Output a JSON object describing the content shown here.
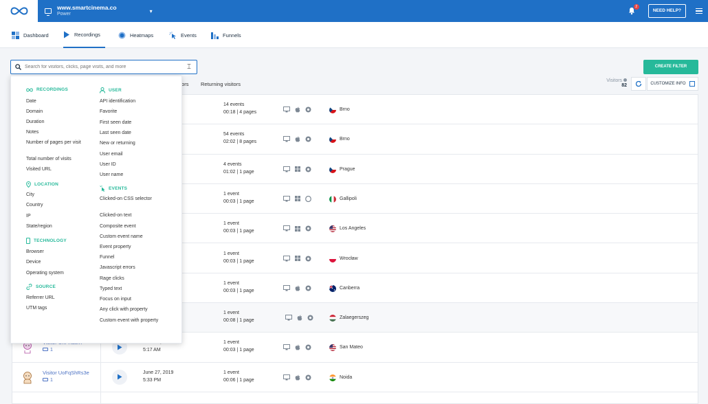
{
  "topbar": {
    "site_name": "www.smartcinema.co",
    "site_plan": "Power",
    "notification_count": "2",
    "help_label": "NEED HELP?"
  },
  "nav": {
    "items": [
      {
        "label": "Dashboard"
      },
      {
        "label": "Recordings"
      },
      {
        "label": "Heatmaps"
      },
      {
        "label": "Events"
      },
      {
        "label": "Funnels"
      }
    ]
  },
  "search": {
    "placeholder": "Search for visitors, clicks, page visits, and more"
  },
  "toolbar": {
    "create_filter_label": "CREATE FILTER",
    "tab_partial": "tors",
    "returning_label": "Returning visitors",
    "visitors_label": "Visitors",
    "visitors_count": "82",
    "customize_label": "CUSTOMIZE INFO"
  },
  "dropdown": {
    "recordings": {
      "title": "RECORDINGS",
      "items": [
        "Date",
        "Domain",
        "Duration",
        "Notes",
        "Number of pages per visit",
        "Total number of visits",
        "Visited URL"
      ]
    },
    "location": {
      "title": "LOCATION",
      "items": [
        "City",
        "Country",
        "IP",
        "State/region"
      ]
    },
    "technology": {
      "title": "TECHNOLOGY",
      "items": [
        "Browser",
        "Device",
        "Operating system"
      ]
    },
    "source": {
      "title": "SOURCE",
      "items": [
        "Referrer URL",
        "UTM tags"
      ]
    },
    "user": {
      "title": "USER",
      "items": [
        "API identification",
        "Favorite",
        "First seen date",
        "Last seen date",
        "New or returning",
        "User email",
        "User ID",
        "User name"
      ]
    },
    "events": {
      "title": "EVENTS",
      "items": [
        "Clicked-on CSS selector",
        "Clicked-on text",
        "Composite event",
        "Custom event name",
        "Event property",
        "Funnel",
        "Javascript errors",
        "Rage clicks",
        "Typed text",
        "Focus on input",
        "Any click with property",
        "Custom event with property"
      ]
    }
  },
  "rows": [
    {
      "visitor": "",
      "recordings": "",
      "date": "019",
      "time": "",
      "events": "14 events",
      "duration": "00:18 | 4 pages",
      "os": "apple",
      "city": "Brno",
      "flag": "cz"
    },
    {
      "visitor": "",
      "recordings": "",
      "date": "9",
      "time": "",
      "events": "54 events",
      "duration": "02:02 | 8 pages",
      "os": "apple",
      "city": "Brno",
      "flag": "cz"
    },
    {
      "visitor": "",
      "recordings": "",
      "date": "",
      "time": "",
      "events": "4 events",
      "duration": "01:02 | 1 page",
      "os": "windows",
      "city": "Prague",
      "flag": "cz"
    },
    {
      "visitor": "",
      "recordings": "",
      "date": "",
      "time": "",
      "events": "1 event",
      "duration": "00:03 | 1 page",
      "os": "windows",
      "city": "Gallipoli",
      "flag": "it"
    },
    {
      "visitor": "",
      "recordings": "",
      "date": "",
      "time": "",
      "events": "1 event",
      "duration": "00:03 | 1 page",
      "os": "windows",
      "city": "Los Angeles",
      "flag": "us"
    },
    {
      "visitor": "",
      "recordings": "",
      "date": "",
      "time": "",
      "events": "1 event",
      "duration": "00:03 | 1 page",
      "os": "windows",
      "city": "Wrocław",
      "flag": "pl"
    },
    {
      "visitor": "",
      "recordings": "",
      "date": "",
      "time": "",
      "events": "1 event",
      "duration": "00:03 | 1 page",
      "os": "apple",
      "city": "Canberra",
      "flag": "au"
    },
    {
      "visitor": "",
      "recordings": "",
      "date": "",
      "time": "",
      "events": "1 event",
      "duration": "00:08 | 1 page",
      "os": "apple",
      "city": "Zalaegerszeg",
      "flag": "hu"
    },
    {
      "visitor": "Visitor UnPXatln7",
      "recordings": "1",
      "date": "June 26, 2019",
      "time": "5:17 AM",
      "events": "1 event",
      "duration": "00:03 | 1 page",
      "os": "apple",
      "city": "San Mateo",
      "flag": "us"
    },
    {
      "visitor": "Visitor UoFqShRs3e",
      "recordings": "1",
      "date": "June 27, 2019",
      "time": "5:33 PM",
      "events": "1 event",
      "duration": "00:06 | 1 page",
      "os": "apple",
      "city": "Noida",
      "flag": "in"
    }
  ]
}
